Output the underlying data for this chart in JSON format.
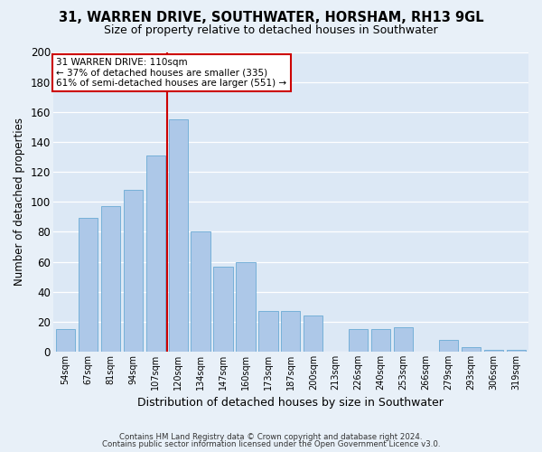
{
  "title": "31, WARREN DRIVE, SOUTHWATER, HORSHAM, RH13 9GL",
  "subtitle": "Size of property relative to detached houses in Southwater",
  "xlabel": "Distribution of detached houses by size in Southwater",
  "ylabel": "Number of detached properties",
  "categories": [
    "54sqm",
    "67sqm",
    "81sqm",
    "94sqm",
    "107sqm",
    "120sqm",
    "134sqm",
    "147sqm",
    "160sqm",
    "173sqm",
    "187sqm",
    "200sqm",
    "213sqm",
    "226sqm",
    "240sqm",
    "253sqm",
    "266sqm",
    "279sqm",
    "293sqm",
    "306sqm",
    "319sqm"
  ],
  "values": [
    15,
    89,
    97,
    108,
    131,
    155,
    80,
    57,
    60,
    27,
    27,
    24,
    0,
    15,
    15,
    16,
    0,
    8,
    3,
    1,
    1
  ],
  "bar_color": "#adc8e8",
  "bar_edge_color": "#6aaad4",
  "vline_x": 4.5,
  "vline_color": "#cc0000",
  "annotation_title": "31 WARREN DRIVE: 110sqm",
  "annotation_line1": "← 37% of detached houses are smaller (335)",
  "annotation_line2": "61% of semi-detached houses are larger (551) →",
  "annotation_box_color": "#ffffff",
  "annotation_box_edge_color": "#cc0000",
  "ylim": [
    0,
    200
  ],
  "yticks": [
    0,
    20,
    40,
    60,
    80,
    100,
    120,
    140,
    160,
    180,
    200
  ],
  "background_color": "#dce8f5",
  "fig_background_color": "#e8f0f8",
  "grid_color": "#ffffff",
  "footer1": "Contains HM Land Registry data © Crown copyright and database right 2024.",
  "footer2": "Contains public sector information licensed under the Open Government Licence v3.0."
}
